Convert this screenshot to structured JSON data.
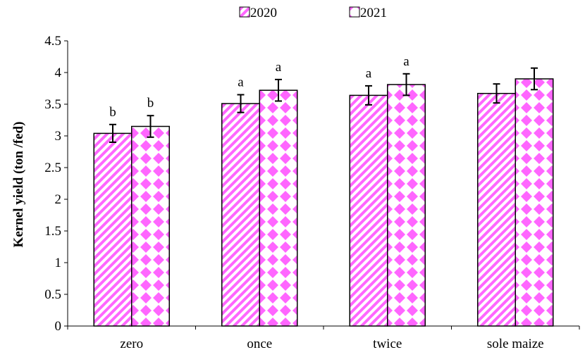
{
  "chart_data": {
    "type": "bar",
    "title": "",
    "xlabel": "",
    "ylabel": "Kernel yield (ton /fed)",
    "ylim": [
      0,
      4.5
    ],
    "yticks": [
      "0",
      "0.5",
      "1",
      "1.5",
      "2",
      "2.5",
      "3",
      "3.5",
      "4",
      "4.5"
    ],
    "categories": [
      "zero",
      "once",
      "twice",
      "sole maize"
    ],
    "legend_position": "top-center",
    "grid": false,
    "series": [
      {
        "name": "2020",
        "pattern": "diagonal-stripes",
        "color": "#ff66ff",
        "values": [
          3.04,
          3.51,
          3.64,
          3.67
        ],
        "errors": [
          0.14,
          0.14,
          0.15,
          0.15
        ],
        "letters": [
          "b",
          "a",
          "a",
          ""
        ]
      },
      {
        "name": "2021",
        "pattern": "diamonds",
        "color": "#ff66ff",
        "values": [
          3.15,
          3.72,
          3.81,
          3.9
        ],
        "errors": [
          0.17,
          0.17,
          0.17,
          0.17
        ],
        "letters": [
          "b",
          "a",
          "a",
          ""
        ]
      }
    ]
  }
}
